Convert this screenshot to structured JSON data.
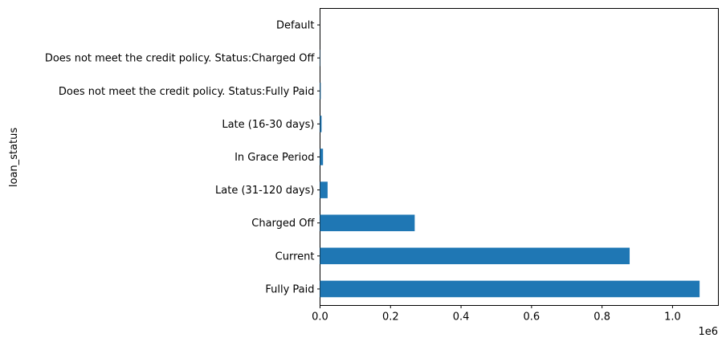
{
  "chart_data": {
    "type": "bar",
    "orientation": "horizontal",
    "title": "",
    "xlabel": "",
    "ylabel": "loan_status",
    "x_offset_text": "1e6",
    "categories": [
      "Fully Paid",
      "Current",
      "Charged Off",
      "Late (31-120 days)",
      "In Grace Period",
      "Late (16-30 days)",
      "Does not meet the credit policy. Status:Fully Paid",
      "Does not meet the credit policy. Status:Charged Off",
      "Default"
    ],
    "values": [
      1076751,
      878317,
      268559,
      21467,
      8436,
      4349,
      1988,
      761,
      40
    ],
    "xlim": [
      0,
      1130000
    ],
    "xticks": [
      0,
      200000,
      400000,
      600000,
      800000,
      1000000
    ],
    "xtick_labels": [
      "0.0",
      "0.2",
      "0.4",
      "0.6",
      "0.8",
      "1.0"
    ],
    "bar_color": "#1f77b4",
    "grid": false,
    "legend": "none"
  }
}
